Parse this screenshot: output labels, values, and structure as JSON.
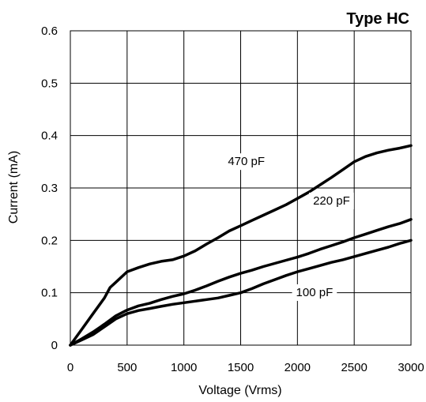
{
  "chart_data": {
    "type": "line",
    "title": "Type HC",
    "xlabel": "Voltage (Vrms)",
    "ylabel": "Current (mA)",
    "xlim": [
      0,
      3000
    ],
    "ylim": [
      0,
      0.6
    ],
    "xticks": [
      0,
      500,
      1000,
      1500,
      2000,
      2500,
      3000
    ],
    "yticks": [
      0,
      0.1,
      0.2,
      0.3,
      0.4,
      0.5,
      0.6
    ],
    "xtick_labels": [
      "0",
      "500",
      "1000",
      "1500",
      "2000",
      "2500",
      "3000"
    ],
    "ytick_labels": [
      "0",
      "0.1",
      "0.2",
      "0.3",
      "0.4",
      "0.5",
      "0.6"
    ],
    "grid": true,
    "series": [
      {
        "name": "470 pF",
        "x": [
          0,
          100,
          200,
          300,
          350,
          400,
          500,
          600,
          700,
          800,
          900,
          1000,
          1100,
          1200,
          1300,
          1400,
          1500,
          1600,
          1700,
          1800,
          1900,
          2000,
          2100,
          2200,
          2300,
          2400,
          2500,
          2600,
          2700,
          2800,
          2900,
          3000
        ],
        "y": [
          0,
          0.03,
          0.06,
          0.09,
          0.11,
          0.12,
          0.14,
          0.148,
          0.155,
          0.16,
          0.163,
          0.17,
          0.18,
          0.193,
          0.205,
          0.218,
          0.228,
          0.238,
          0.248,
          0.258,
          0.268,
          0.28,
          0.292,
          0.306,
          0.32,
          0.335,
          0.35,
          0.36,
          0.367,
          0.372,
          0.376,
          0.381
        ]
      },
      {
        "name": "220 pF",
        "x": [
          0,
          100,
          200,
          300,
          400,
          500,
          600,
          700,
          800,
          900,
          1000,
          1100,
          1200,
          1300,
          1400,
          1500,
          1600,
          1700,
          1800,
          1900,
          2000,
          2100,
          2200,
          2300,
          2400,
          2500,
          2600,
          2700,
          2800,
          2900,
          3000
        ],
        "y": [
          0,
          0.012,
          0.025,
          0.04,
          0.056,
          0.067,
          0.075,
          0.08,
          0.087,
          0.093,
          0.098,
          0.105,
          0.113,
          0.122,
          0.13,
          0.137,
          0.143,
          0.15,
          0.156,
          0.162,
          0.168,
          0.175,
          0.183,
          0.19,
          0.197,
          0.205,
          0.212,
          0.219,
          0.226,
          0.232,
          0.24
        ]
      },
      {
        "name": "100 pF",
        "x": [
          0,
          100,
          200,
          300,
          400,
          500,
          600,
          700,
          800,
          900,
          1000,
          1100,
          1200,
          1300,
          1400,
          1500,
          1600,
          1700,
          1800,
          1900,
          2000,
          2100,
          2200,
          2300,
          2400,
          2500,
          2600,
          2700,
          2800,
          2900,
          3000
        ],
        "y": [
          0,
          0.01,
          0.02,
          0.035,
          0.05,
          0.06,
          0.066,
          0.07,
          0.074,
          0.078,
          0.081,
          0.084,
          0.087,
          0.09,
          0.095,
          0.1,
          0.108,
          0.117,
          0.125,
          0.133,
          0.14,
          0.146,
          0.152,
          0.158,
          0.163,
          0.169,
          0.175,
          0.181,
          0.187,
          0.194,
          0.2
        ]
      }
    ],
    "series_labels": [
      {
        "text": "470 pF",
        "x": 1550,
        "y": 0.345
      },
      {
        "text": "220 pF",
        "x": 2300,
        "y": 0.27
      },
      {
        "text": "100 pF",
        "x": 2150,
        "y": 0.095
      }
    ]
  }
}
